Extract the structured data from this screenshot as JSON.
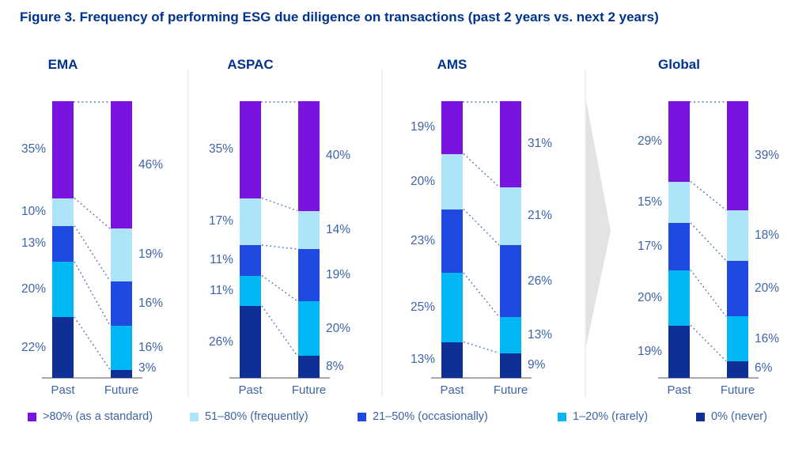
{
  "title": "Figure 3. Frequency of performing ESG due diligence on transactions (past 2 years vs. next 2 years)",
  "colors": {
    "title_blue": "#00338D",
    "label_text": "#3D64A5",
    "connector": "#4A72B2",
    "baseline": "#8B8B8B",
    "divider": "#ECECEC",
    "arrow": "#E3E3E3",
    "background": "#FFFFFF"
  },
  "chart_data": {
    "type": "bar",
    "stacked": true,
    "unit": "%",
    "ylim": [
      0,
      100
    ],
    "grid": false,
    "legend_position": "bottom",
    "bar_labels": [
      "Past",
      "Future"
    ],
    "segment_labels": [
      ">80% (as a standard)",
      "51–80% (frequently)",
      "21–50% (occasionally)",
      "1–20% (rarely)",
      "0% (never)"
    ],
    "segment_colors": [
      "#7A12E0",
      "#ADE4FA",
      "#1F49E0",
      "#00B7F4",
      "#0E2F95"
    ],
    "segment_order": "top-to-bottom",
    "groups": [
      {
        "name": "EMA",
        "past": [
          35,
          10,
          13,
          20,
          22
        ],
        "future": [
          46,
          19,
          16,
          16,
          3
        ]
      },
      {
        "name": "ASPAC",
        "past": [
          35,
          17,
          11,
          11,
          26
        ],
        "future": [
          40,
          14,
          19,
          20,
          8
        ]
      },
      {
        "name": "AMS",
        "past": [
          19,
          20,
          23,
          25,
          13
        ],
        "future": [
          31,
          21,
          26,
          13,
          9
        ]
      },
      {
        "name": "Global",
        "past": [
          29,
          15,
          17,
          20,
          19
        ],
        "future": [
          39,
          18,
          20,
          16,
          6
        ]
      }
    ]
  }
}
